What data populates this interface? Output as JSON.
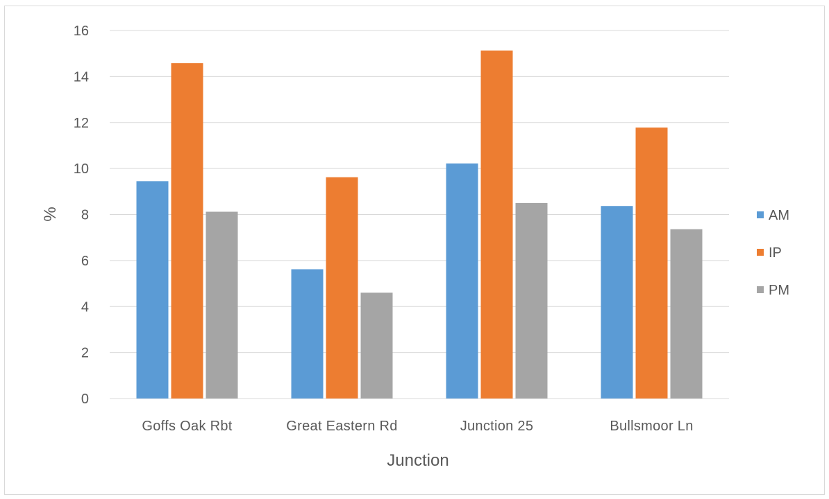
{
  "chart_data": {
    "type": "bar",
    "categories": [
      "Goffs Oak Rbt",
      "Great Eastern Rd",
      "Junction 25",
      "Bullsmoor Ln"
    ],
    "series": [
      {
        "name": "AM",
        "color": "#5b9bd5",
        "values": [
          9.45,
          5.62,
          10.22,
          8.37
        ]
      },
      {
        "name": "IP",
        "color": "#ed7d31",
        "values": [
          14.58,
          9.62,
          15.13,
          11.78
        ]
      },
      {
        "name": "PM",
        "color": "#a5a5a5",
        "values": [
          8.12,
          4.6,
          8.5,
          7.36
        ]
      }
    ],
    "title": "",
    "xlabel": "Junction",
    "ylabel": "%",
    "ylim": [
      0,
      16
    ],
    "yticks": [
      0,
      2,
      4,
      6,
      8,
      10,
      12,
      14,
      16
    ],
    "grid": true,
    "gridline_color": "#d9d9d9",
    "legend_position": "right"
  }
}
